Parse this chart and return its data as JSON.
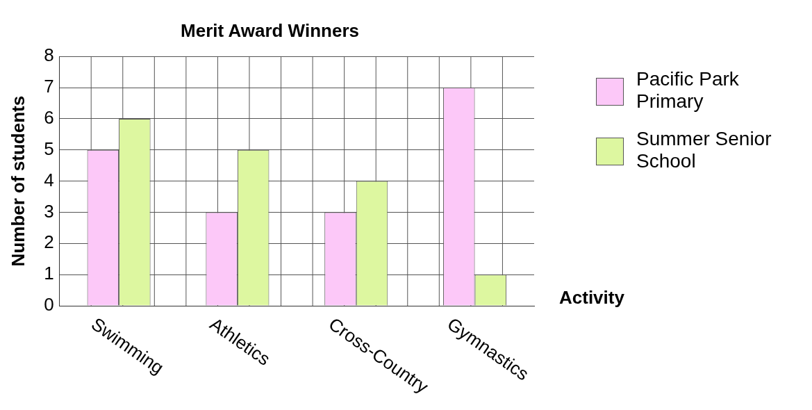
{
  "chart_data": {
    "type": "bar",
    "title": "Merit Award Winners",
    "xlabel": "Activity",
    "ylabel": "Number of students",
    "categories": [
      "Swimming",
      "Athletics",
      "Cross-Country",
      "Gymnastics"
    ],
    "series": [
      {
        "name": "Pacific Park Primary",
        "color": "#fcc8f8",
        "values": [
          5,
          3,
          3,
          7
        ]
      },
      {
        "name": "Summer Senior School",
        "color": "#ddf7a0",
        "values": [
          6,
          5,
          4,
          1
        ]
      }
    ],
    "ylim": [
      0,
      8
    ],
    "yticks": [
      0,
      1,
      2,
      3,
      4,
      5,
      6,
      7,
      8
    ],
    "grid": true,
    "legend": "right"
  }
}
